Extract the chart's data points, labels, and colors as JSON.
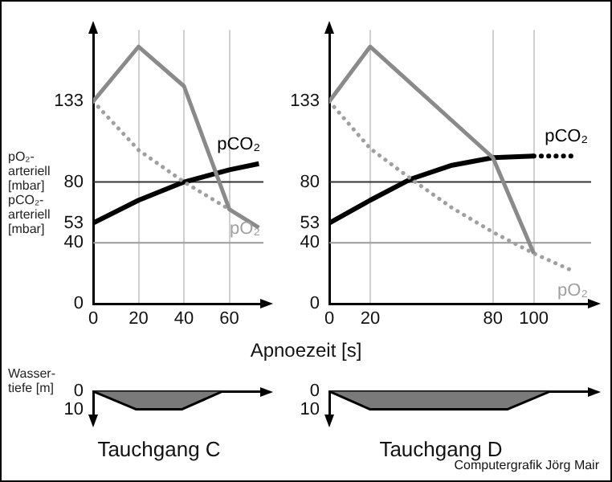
{
  "chart_data": [
    {
      "type": "line",
      "xlabel": "Apnoezeit [s]",
      "ylabel": "pO₂-arteriell [mbar] pCO₂-arteriell [mbar]",
      "xlim": [
        0,
        75
      ],
      "ylim": [
        0,
        180
      ],
      "xticks": [
        0,
        20,
        40,
        60
      ],
      "yticks": [
        0,
        40,
        53,
        80,
        133
      ],
      "grid": "x",
      "marker": "none",
      "ref_lines": [
        {
          "axis": "y",
          "value": 80,
          "color": "#333333"
        },
        {
          "axis": "y",
          "value": 40,
          "color": "#9a9a9a"
        }
      ],
      "series": [
        {
          "color": "#8a8a8a",
          "line_style": "solid",
          "x": [
            0,
            20,
            40,
            60,
            73
          ],
          "values": [
            133,
            169,
            143,
            62,
            50
          ]
        },
        {
          "name": "pO₂",
          "color": "#a0a0a0",
          "line_style": "dotted",
          "x": [
            0,
            20,
            40,
            60
          ],
          "values": [
            133,
            101,
            80,
            62
          ]
        },
        {
          "name": "pCO₂",
          "color": "#000000",
          "line_style": "solid",
          "x": [
            0,
            20,
            40,
            60,
            73
          ],
          "values": [
            53,
            68,
            80,
            88,
            92
          ]
        }
      ]
    },
    {
      "type": "line",
      "xlim": [
        0,
        128
      ],
      "ylim": [
        0,
        180
      ],
      "xticks": [
        0,
        20,
        80,
        100
      ],
      "yticks": [
        0,
        40,
        53,
        80,
        133
      ],
      "grid": "x",
      "marker": "none",
      "ref_lines": [
        {
          "axis": "y",
          "value": 80,
          "color": "#333333"
        },
        {
          "axis": "y",
          "value": 40,
          "color": "#9a9a9a"
        }
      ],
      "series": [
        {
          "color": "#8a8a8a",
          "line_style": "solid",
          "x": [
            0,
            20,
            80,
            100
          ],
          "values": [
            133,
            169,
            96,
            33
          ]
        },
        {
          "name": "pO₂",
          "color": "#a0a0a0",
          "line_style": "dotted",
          "x": [
            0,
            20,
            40,
            60,
            80,
            100,
            120
          ],
          "values": [
            133,
            102,
            82,
            63,
            47,
            33,
            21
          ]
        },
        {
          "name": "pCO₂",
          "color": "#000000",
          "line_style": "solid",
          "x": [
            0,
            20,
            40,
            60,
            80,
            100
          ],
          "values": [
            53,
            68,
            82,
            91,
            96,
            97
          ]
        },
        {
          "color": "#000000",
          "line_style": "dotted",
          "x": [
            100,
            120
          ],
          "values": [
            97,
            97
          ]
        }
      ]
    },
    {
      "type": "area",
      "xlabel": "Tauchgang C",
      "ylabel": "Wasser-tiefe [m]",
      "xlim": [
        0,
        75
      ],
      "ylim": [
        15,
        0
      ],
      "yticks": [
        0,
        10
      ],
      "tick_labels": "y",
      "series": [
        {
          "color": "#7a7a7a",
          "x": [
            0,
            19,
            39,
            57
          ],
          "values": [
            0,
            10,
            10,
            0
          ]
        }
      ]
    },
    {
      "type": "area",
      "xlabel": "Tauchgang D",
      "xlim": [
        0,
        128
      ],
      "ylim": [
        15,
        0
      ],
      "yticks": [
        0,
        10
      ],
      "tick_labels": "y",
      "annotations": [
        "Computergrafik Jörg Mair"
      ],
      "series": [
        {
          "color": "#7a7a7a",
          "x": [
            0,
            20,
            87,
            108
          ],
          "values": [
            0,
            10,
            10,
            0
          ]
        }
      ]
    }
  ]
}
